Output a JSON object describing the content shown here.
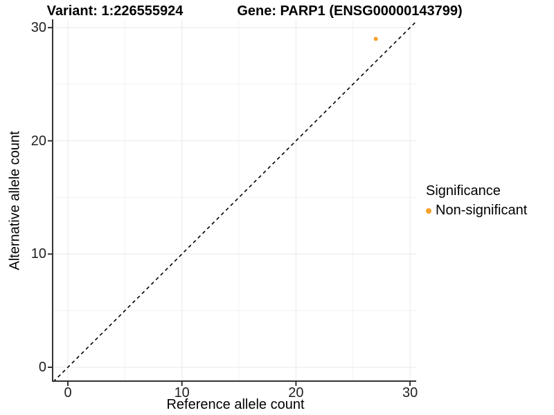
{
  "titles": {
    "variant": "Variant: 1:226555924",
    "gene": "Gene: PARP1 (ENSG00000143799)"
  },
  "axes": {
    "x_label": "Reference allele count",
    "y_label": "Alternative allele count",
    "x_tick_labels": [
      "0",
      "10",
      "20",
      "30"
    ],
    "y_tick_labels": [
      "0",
      "10",
      "20",
      "30"
    ]
  },
  "legend": {
    "title": "Significance",
    "items": [
      {
        "label": "Non-significant",
        "color": "#F9A02D",
        "marker": "circle-icon"
      }
    ]
  },
  "colors": {
    "point": "#F9A02D",
    "grid_major": "#e8e8e8",
    "grid_minor": "#f2f2f2",
    "axis_line": "#333333",
    "identity_line": "#000000",
    "background": "#ffffff"
  },
  "chart_data": {
    "type": "scatter",
    "title": "Variant: 1:226555924 / Gene: PARP1 (ENSG00000143799)",
    "xlabel": "Reference allele count",
    "ylabel": "Alternative allele count",
    "xlim": [
      -1.4,
      30.6
    ],
    "ylim": [
      -1.3,
      30.7
    ],
    "x_ticks": [
      0,
      10,
      20,
      30
    ],
    "y_ticks": [
      0,
      10,
      20,
      30
    ],
    "x_minor_ticks": [
      5,
      15,
      25
    ],
    "y_minor_ticks": [
      5,
      15,
      25
    ],
    "grid": "major+minor",
    "legend_position": "right",
    "series": [
      {
        "name": "Non-significant",
        "color": "#F9A02D",
        "marker": "circle",
        "points": [
          {
            "x": 27,
            "y": 29
          }
        ]
      }
    ],
    "reference_line": {
      "kind": "identity y=x",
      "linetype": "dashed",
      "color": "#000000"
    }
  }
}
